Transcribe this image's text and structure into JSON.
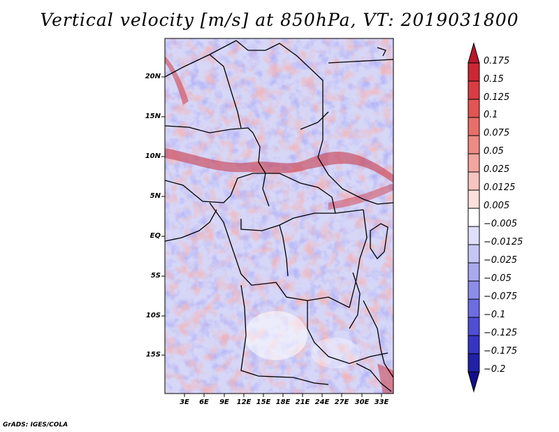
{
  "title": "Vertical velocity [m/s] at 850hPa, VT: 2019031800",
  "credit": "GrADS: IGES/COLA",
  "map": {
    "lat_ticks": [
      "20N",
      "15N",
      "10N",
      "5N",
      "EQ",
      "5S",
      "10S",
      "15S"
    ],
    "lon_ticks": [
      "3E",
      "6E",
      "9E",
      "12E",
      "15E",
      "18E",
      "21E",
      "24E",
      "27E",
      "30E",
      "33E"
    ]
  },
  "colorbar": {
    "labels": [
      "0.175",
      "0.15",
      "0.125",
      "0.1",
      "0.075",
      "0.05",
      "0.025",
      "0.0125",
      "0.005",
      "−0.005",
      "−0.0125",
      "−0.025",
      "−0.05",
      "−0.075",
      "−0.1",
      "−0.125",
      "−0.175",
      "−0.2"
    ],
    "colors": [
      "#b8182a",
      "#cc2633",
      "#d93d42",
      "#e25553",
      "#e86e69",
      "#ee8a84",
      "#f3a6a0",
      "#f8c4bf",
      "#fbe0dc",
      "#ffffff",
      "#dfdffb",
      "#c6c6f6",
      "#a9a9f0",
      "#8c8cea",
      "#6d6de2",
      "#4f4fd6",
      "#3535c4",
      "#2020a8",
      "#120e8a"
    ]
  }
}
